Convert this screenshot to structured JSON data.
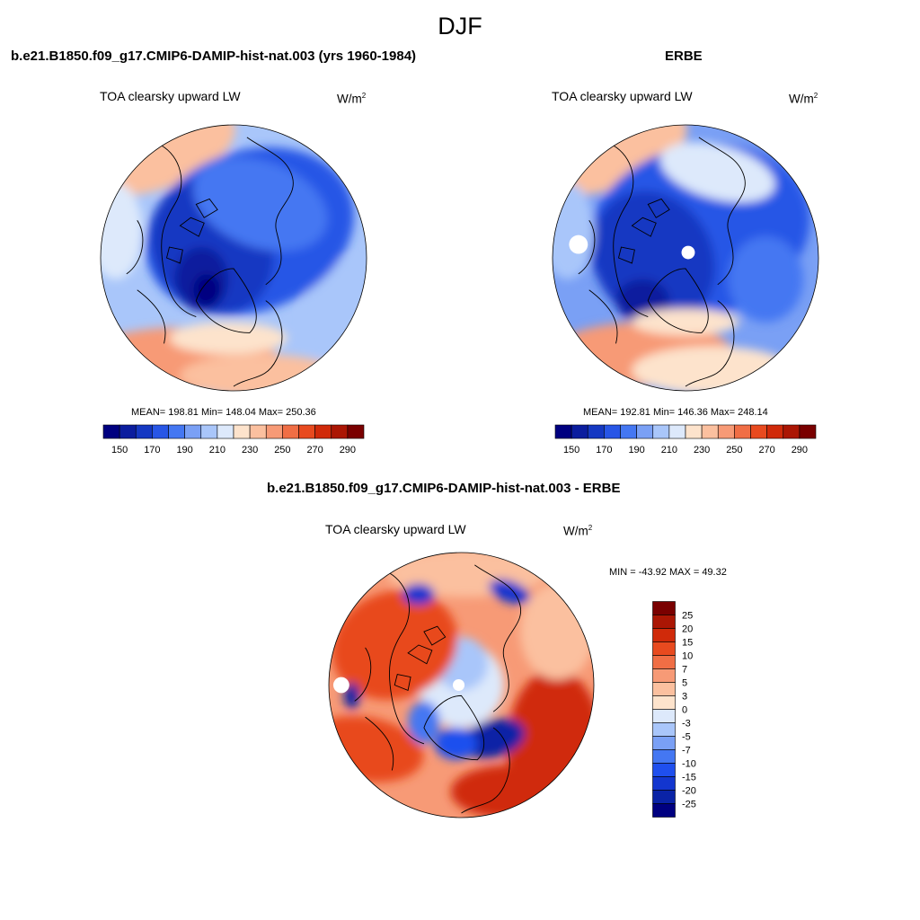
{
  "season": "DJF",
  "colors": {
    "ramp": [
      "#000080",
      "#0b1d9e",
      "#1538c2",
      "#2856e6",
      "#4477f2",
      "#7aa0f5",
      "#a9c6fa",
      "#dde9fb",
      "#fde3cc",
      "#fbc09f",
      "#f79a76",
      "#f06e45",
      "#e84a1f",
      "#d02a0a",
      "#ab1604",
      "#7a0000"
    ],
    "diff_ramp": [
      "#000080",
      "#0a23a6",
      "#1336cf",
      "#1f4fee",
      "#4477f2",
      "#7aa0f5",
      "#a9c6fa",
      "#dde9fb",
      "#fde3cc",
      "#fbc09f",
      "#f79a76",
      "#f06e45",
      "#e84a1f",
      "#d02a0a",
      "#ab1604",
      "#7a0000"
    ]
  },
  "panels": [
    {
      "title": "b.e21.B1850.f09_g17.CMIP6-DAMIP-hist-nat.003 (yrs 1960-1984)",
      "field": "TOA clearsky upward LW",
      "units": "W/m",
      "units_sup": "2",
      "stats": "MEAN= 198.81  Min= 148.04  Max= 250.36"
    },
    {
      "title": "ERBE",
      "field": "TOA clearsky upward LW",
      "units": "W/m",
      "units_sup": "2",
      "stats": "MEAN= 192.81  Min= 146.36  Max= 248.14"
    },
    {
      "title": "b.e21.B1850.f09_g17.CMIP6-DAMIP-hist-nat.003 - ERBE",
      "field": "TOA clearsky upward LW",
      "units": "W/m",
      "units_sup": "2",
      "stats": "MIN = -43.92 MAX =  49.32"
    }
  ],
  "chart_data": [
    {
      "type": "heatmap",
      "projection": "north polar stereographic",
      "title": "b.e21.B1850.f09_g17.CMIP6-DAMIP-hist-nat.003 (yrs 1960-1984)",
      "variable": "TOA clearsky upward LW",
      "units": "W/m2",
      "mean": 198.81,
      "min": 148.04,
      "max": 250.36,
      "colorbar": {
        "orientation": "horizontal",
        "levels": [
          150,
          160,
          170,
          180,
          190,
          200,
          210,
          220,
          230,
          240,
          250,
          260,
          270,
          280,
          290
        ],
        "tick_labels": [
          "150",
          "170",
          "190",
          "210",
          "230",
          "250",
          "270",
          "290"
        ]
      }
    },
    {
      "type": "heatmap",
      "projection": "north polar stereographic",
      "title": "ERBE",
      "variable": "TOA clearsky upward LW",
      "units": "W/m2",
      "mean": 192.81,
      "min": 146.36,
      "max": 248.14,
      "colorbar": {
        "orientation": "horizontal",
        "levels": [
          150,
          160,
          170,
          180,
          190,
          200,
          210,
          220,
          230,
          240,
          250,
          260,
          270,
          280,
          290
        ],
        "tick_labels": [
          "150",
          "170",
          "190",
          "210",
          "230",
          "250",
          "270",
          "290"
        ]
      }
    },
    {
      "type": "heatmap",
      "projection": "north polar stereographic",
      "title": "b.e21.B1850.f09_g17.CMIP6-DAMIP-hist-nat.003 - ERBE",
      "variable": "TOA clearsky upward LW",
      "units": "W/m2",
      "min": -43.92,
      "max": 49.32,
      "colorbar": {
        "orientation": "vertical",
        "levels": [
          -25,
          -20,
          -15,
          -10,
          -7,
          -5,
          -3,
          0,
          3,
          5,
          7,
          10,
          15,
          20,
          25
        ],
        "tick_labels": [
          "25",
          "20",
          "15",
          "10",
          "7",
          "5",
          "3",
          "0",
          "-3",
          "-5",
          "-7",
          "-10",
          "-15",
          "-20",
          "-25"
        ]
      }
    }
  ]
}
